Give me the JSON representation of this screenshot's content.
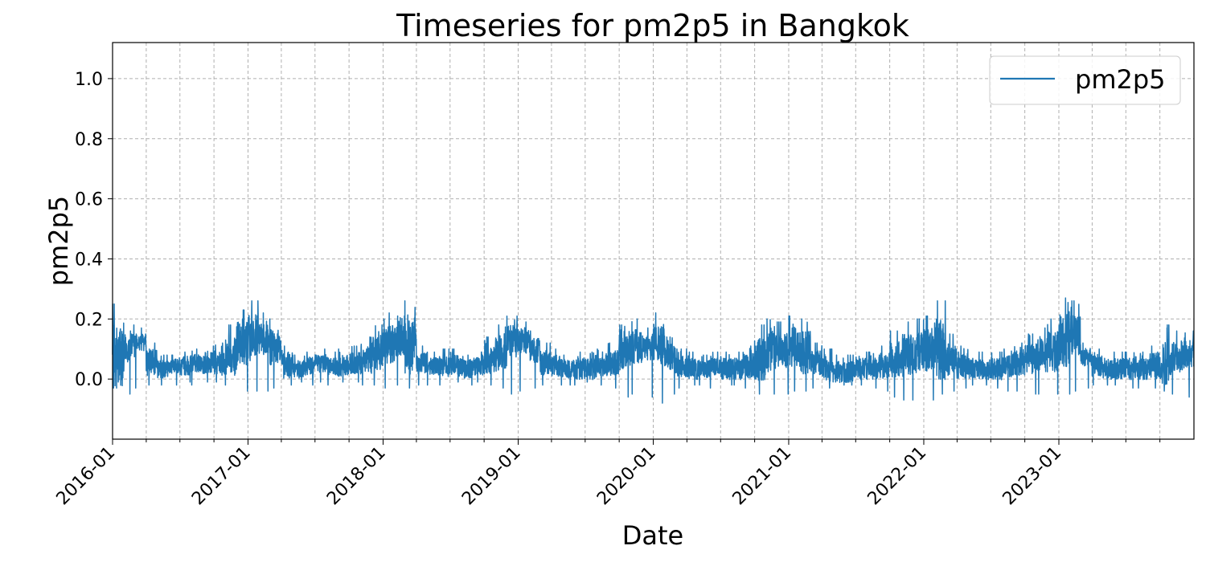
{
  "chart_data": {
    "type": "line",
    "title": "Timeseries for pm2p5 in Bangkok",
    "xlabel": "Date",
    "ylabel": "pm2p5",
    "ylim": [
      -0.2,
      1.12
    ],
    "xlim": [
      "2016-01-01",
      "2024-01-01"
    ],
    "x_major_ticks": [
      "2016-01",
      "2017-01",
      "2018-01",
      "2019-01",
      "2020-01",
      "2021-01",
      "2022-01",
      "2023-01"
    ],
    "x_minor_tick_interval": "quarter",
    "y_ticks": [
      0.0,
      0.2,
      0.4,
      0.6,
      0.8,
      1.0
    ],
    "y_tick_labels": [
      "0.0",
      "0.2",
      "0.4",
      "0.6",
      "0.8",
      "1.0"
    ],
    "grid": true,
    "legend": {
      "placement": "top-right",
      "entries": [
        "pm2p5"
      ]
    },
    "series": [
      {
        "name": "pm2p5",
        "color": "#1f77b4",
        "x": [
          "2016-01",
          "2016-02",
          "2016-03",
          "2016-04",
          "2016-05",
          "2016-06",
          "2016-07",
          "2016-08",
          "2016-09",
          "2016-10",
          "2016-11",
          "2016-12",
          "2017-01",
          "2017-02",
          "2017-03",
          "2017-04",
          "2017-05",
          "2017-06",
          "2017-07",
          "2017-08",
          "2017-09",
          "2017-10",
          "2017-11",
          "2017-12",
          "2018-01",
          "2018-02",
          "2018-03",
          "2018-04",
          "2018-05",
          "2018-06",
          "2018-07",
          "2018-08",
          "2018-09",
          "2018-10",
          "2018-11",
          "2018-12",
          "2019-01",
          "2019-02",
          "2019-03",
          "2019-04",
          "2019-05",
          "2019-06",
          "2019-07",
          "2019-08",
          "2019-09",
          "2019-10",
          "2019-11",
          "2019-12",
          "2020-01",
          "2020-02",
          "2020-03",
          "2020-04",
          "2020-05",
          "2020-06",
          "2020-07",
          "2020-08",
          "2020-09",
          "2020-10",
          "2020-11",
          "2020-12",
          "2021-01",
          "2021-02",
          "2021-03",
          "2021-04",
          "2021-05",
          "2021-06",
          "2021-07",
          "2021-08",
          "2021-09",
          "2021-10",
          "2021-11",
          "2021-12",
          "2022-01",
          "2022-02",
          "2022-03",
          "2022-04",
          "2022-05",
          "2022-06",
          "2022-07",
          "2022-08",
          "2022-09",
          "2022-10",
          "2022-11",
          "2022-12",
          "2023-01",
          "2023-02",
          "2023-03",
          "2023-04",
          "2023-05",
          "2023-06",
          "2023-07",
          "2023-08",
          "2023-09",
          "2023-10",
          "2023-11",
          "2023-12"
        ],
        "y_mean": [
          0.06,
          0.1,
          0.12,
          0.05,
          0.03,
          0.04,
          0.04,
          0.05,
          0.05,
          0.05,
          0.07,
          0.11,
          0.13,
          0.13,
          0.1,
          0.04,
          0.03,
          0.04,
          0.05,
          0.04,
          0.04,
          0.05,
          0.06,
          0.08,
          0.11,
          0.12,
          0.1,
          0.05,
          0.04,
          0.04,
          0.04,
          0.03,
          0.04,
          0.06,
          0.08,
          0.12,
          0.12,
          0.09,
          0.05,
          0.04,
          0.03,
          0.03,
          0.03,
          0.04,
          0.05,
          0.08,
          0.1,
          0.1,
          0.11,
          0.07,
          0.04,
          0.03,
          0.03,
          0.04,
          0.03,
          0.03,
          0.04,
          0.06,
          0.08,
          0.09,
          0.1,
          0.08,
          0.05,
          0.03,
          0.02,
          0.02,
          0.03,
          0.03,
          0.04,
          0.06,
          0.07,
          0.08,
          0.09,
          0.09,
          0.06,
          0.04,
          0.03,
          0.03,
          0.03,
          0.04,
          0.05,
          0.06,
          0.07,
          0.08,
          0.12,
          0.14,
          0.07,
          0.04,
          0.03,
          0.03,
          0.03,
          0.03,
          0.04,
          0.05,
          0.07,
          0.08
        ],
        "y_peak": [
          0.25,
          0.18,
          0.17,
          0.12,
          0.08,
          0.08,
          0.09,
          0.1,
          0.11,
          0.12,
          0.18,
          0.23,
          0.26,
          0.22,
          0.2,
          0.11,
          0.08,
          0.09,
          0.1,
          0.09,
          0.1,
          0.11,
          0.14,
          0.18,
          0.22,
          0.21,
          0.26,
          0.11,
          0.09,
          0.1,
          0.1,
          0.08,
          0.09,
          0.14,
          0.18,
          0.21,
          0.19,
          0.16,
          0.12,
          0.1,
          0.08,
          0.09,
          0.09,
          0.1,
          0.12,
          0.18,
          0.2,
          0.17,
          0.22,
          0.14,
          0.1,
          0.09,
          0.08,
          0.09,
          0.09,
          0.09,
          0.11,
          0.18,
          0.2,
          0.19,
          0.21,
          0.2,
          0.12,
          0.1,
          0.08,
          0.08,
          0.09,
          0.09,
          0.11,
          0.16,
          0.19,
          0.2,
          0.21,
          0.26,
          0.15,
          0.11,
          0.09,
          0.09,
          0.09,
          0.1,
          0.12,
          0.15,
          0.17,
          0.2,
          0.27,
          0.26,
          0.12,
          0.1,
          0.09,
          0.09,
          0.09,
          0.09,
          0.11,
          0.18,
          0.16,
          0.16
        ],
        "y_min": [
          -0.03,
          -0.05,
          -0.03,
          -0.02,
          -0.02,
          -0.02,
          -0.01,
          -0.02,
          -0.01,
          -0.01,
          -0.02,
          -0.04,
          -0.04,
          -0.04,
          -0.03,
          -0.02,
          -0.01,
          -0.02,
          -0.01,
          -0.02,
          -0.01,
          -0.01,
          -0.02,
          -0.02,
          -0.03,
          -0.02,
          -0.03,
          -0.02,
          -0.02,
          -0.02,
          -0.01,
          -0.02,
          -0.01,
          -0.02,
          -0.03,
          -0.05,
          -0.04,
          -0.03,
          -0.02,
          -0.02,
          -0.02,
          -0.02,
          -0.01,
          -0.02,
          -0.03,
          -0.06,
          -0.05,
          -0.06,
          -0.08,
          -0.05,
          -0.03,
          -0.02,
          -0.02,
          -0.03,
          -0.02,
          -0.02,
          -0.03,
          -0.05,
          -0.05,
          -0.05,
          -0.04,
          -0.04,
          -0.03,
          -0.03,
          -0.02,
          -0.02,
          -0.02,
          -0.03,
          -0.04,
          -0.06,
          -0.07,
          -0.07,
          -0.07,
          -0.05,
          -0.04,
          -0.03,
          -0.02,
          -0.02,
          -0.03,
          -0.04,
          -0.04,
          -0.05,
          -0.05,
          -0.05,
          -0.05,
          -0.04,
          -0.03,
          -0.02,
          -0.02,
          -0.02,
          -0.03,
          -0.03,
          -0.03,
          -0.04,
          -0.05,
          -0.06
        ]
      }
    ]
  }
}
